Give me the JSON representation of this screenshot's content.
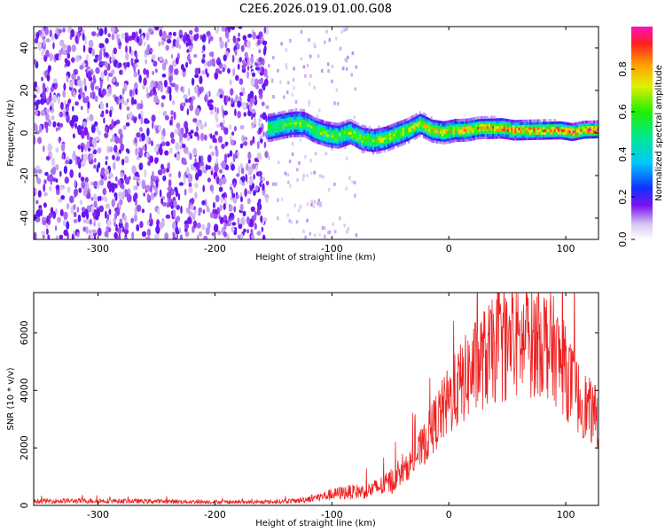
{
  "title": "C2E6.2026.019.01.00.G08",
  "chart_data": [
    {
      "type": "heatmap",
      "name": "spectrogram",
      "xlabel": "Height of straight line (km)",
      "ylabel": "Frequency (Hz)",
      "xlim": [
        -355,
        128
      ],
      "ylim": [
        -50,
        50
      ],
      "xticks": [
        -300,
        -200,
        -100,
        0,
        100
      ],
      "yticks": [
        -40,
        -20,
        0,
        20,
        40
      ],
      "grid": false,
      "colorbar": {
        "label": "Normalized spectral amplitude",
        "range": [
          0,
          1
        ],
        "ticks": [
          0.0,
          0.2,
          0.4,
          0.6,
          0.8
        ]
      },
      "noise_region_x": [
        -355,
        -155
      ],
      "signal_trace": {
        "x": [
          -155,
          -145,
          -135,
          -125,
          -115,
          -105,
          -95,
          -85,
          -75,
          -65,
          -55,
          -45,
          -35,
          -25,
          -15,
          -5,
          5,
          15,
          25,
          35,
          45,
          55,
          65,
          75,
          85,
          95,
          105,
          115,
          125
        ],
        "freq": [
          3,
          4,
          5,
          5,
          2,
          0,
          -1,
          1,
          -2,
          -3,
          -2,
          0,
          2,
          5,
          2,
          1,
          2,
          2,
          3,
          3,
          3,
          2,
          2,
          2,
          2,
          2,
          1,
          2,
          2
        ]
      }
    },
    {
      "type": "line",
      "name": "snr",
      "xlabel": "Height of straight line (km)",
      "ylabel": "SNR (10 * v/v)",
      "xlim": [
        -355,
        128
      ],
      "ylim": [
        0,
        7400
      ],
      "xticks": [
        -300,
        -200,
        -100,
        0,
        100
      ],
      "yticks": [
        0,
        2000,
        4000,
        6000
      ],
      "grid": false,
      "color": "#ee2020",
      "envelope": {
        "x": [
          -355,
          -300,
          -250,
          -200,
          -160,
          -130,
          -110,
          -90,
          -70,
          -55,
          -40,
          -30,
          -20,
          -10,
          0,
          10,
          20,
          30,
          40,
          50,
          60,
          70,
          80,
          90,
          100,
          110,
          120,
          128
        ],
        "y": [
          150,
          160,
          140,
          120,
          110,
          160,
          300,
          450,
          500,
          700,
          1100,
          1600,
          2200,
          3000,
          3600,
          4200,
          4700,
          5100,
          5400,
          5500,
          5600,
          5700,
          5800,
          5400,
          4600,
          3800,
          3300,
          3000
        ]
      }
    }
  ]
}
